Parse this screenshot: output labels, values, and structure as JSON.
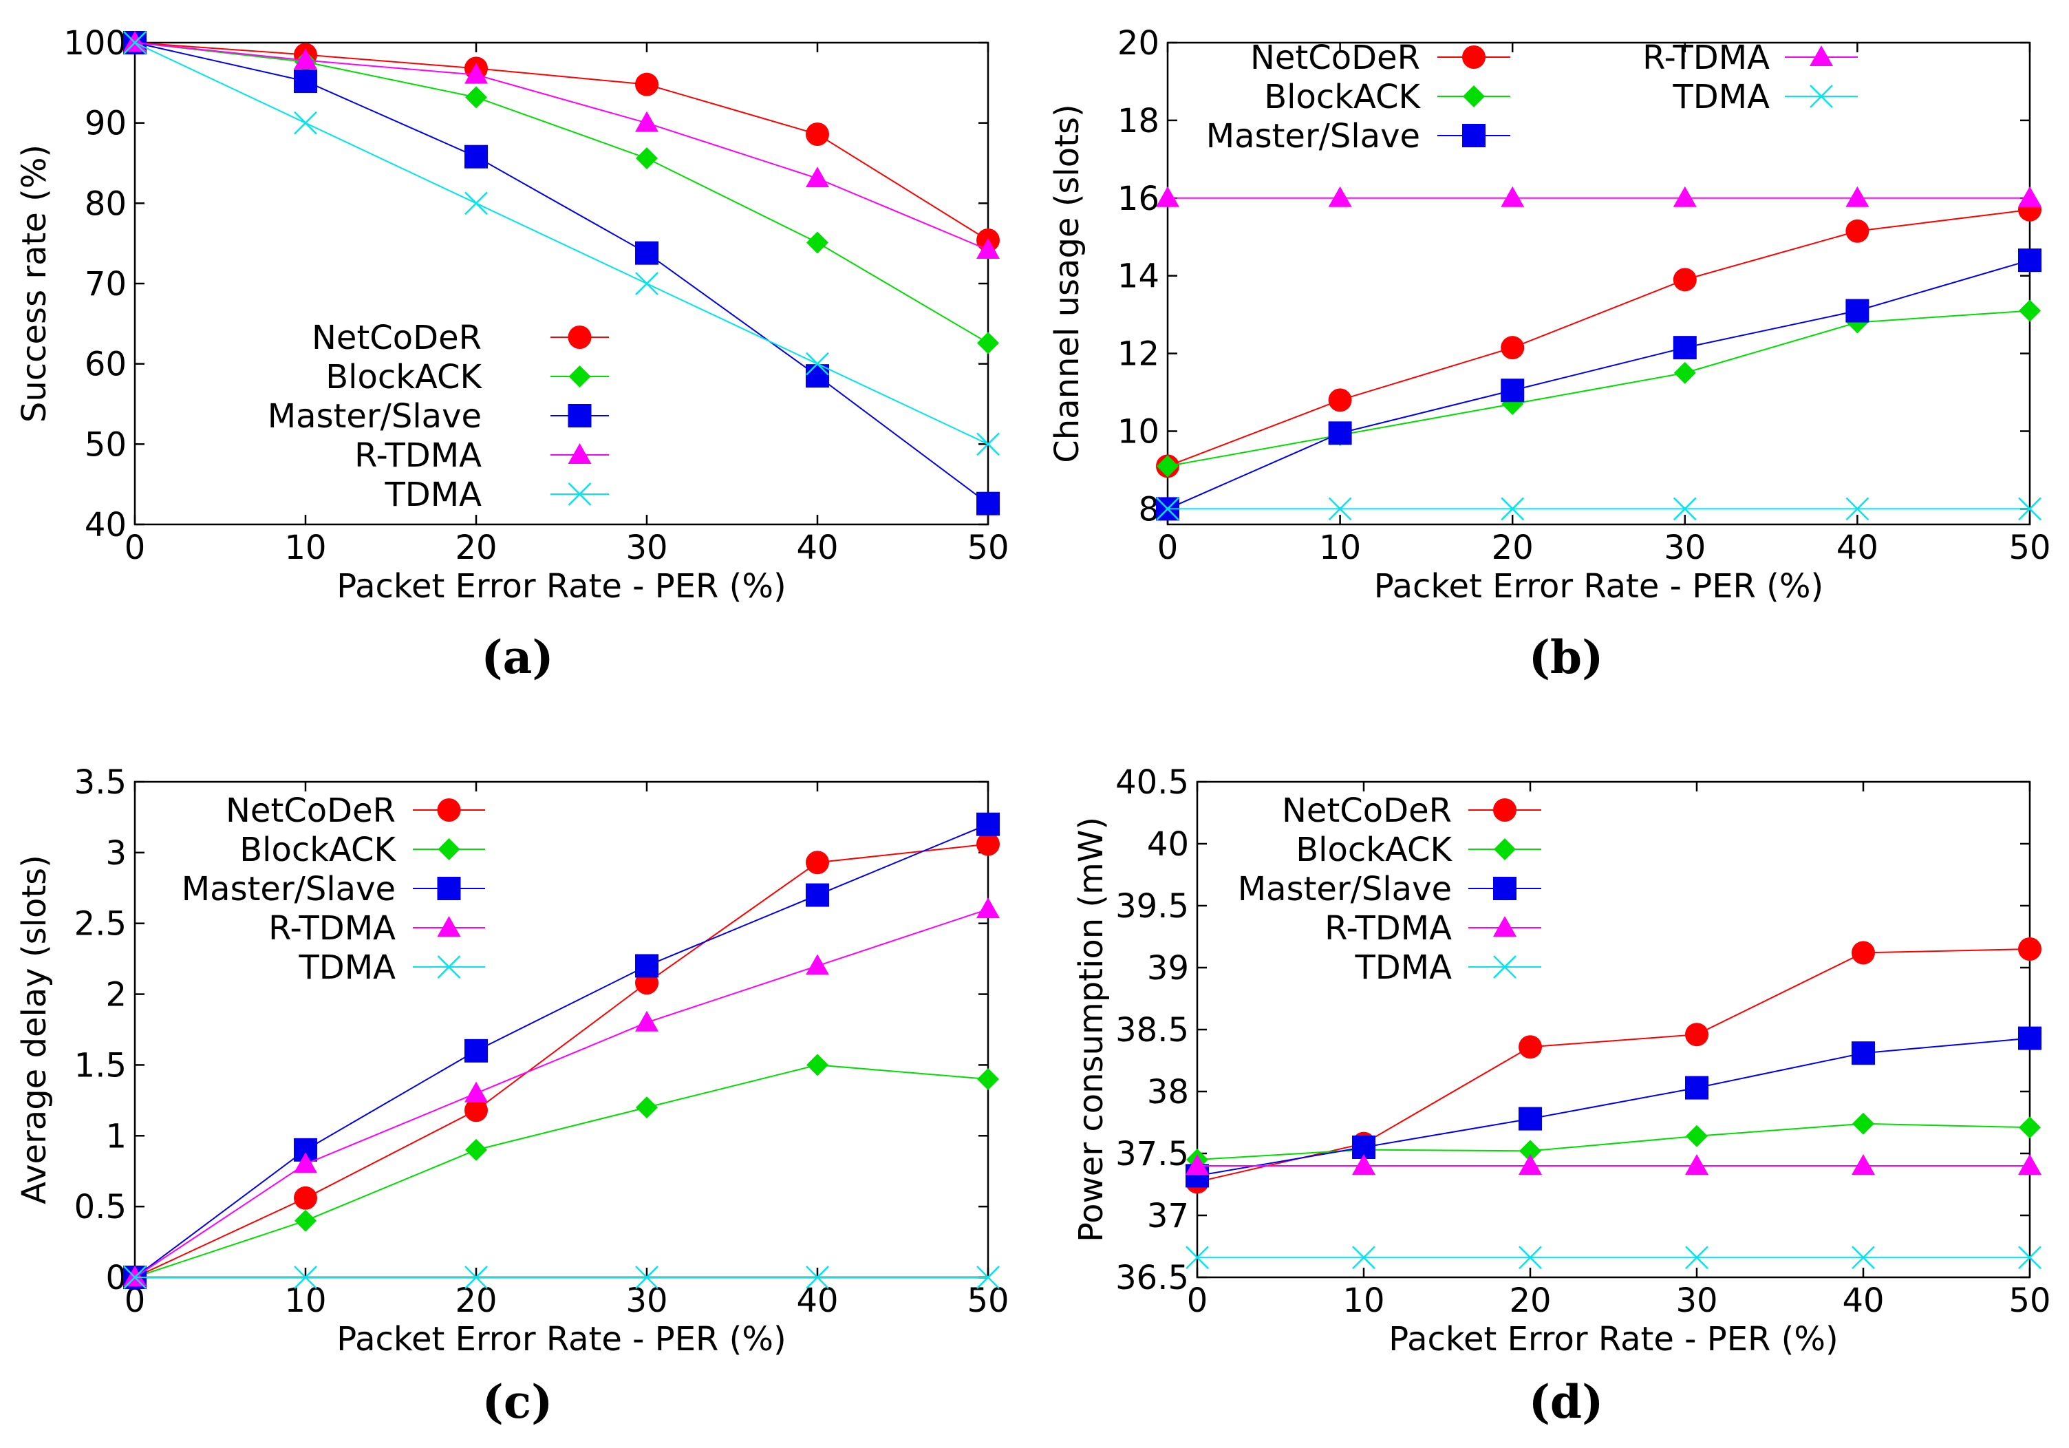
{
  "legend_colors": {
    "NetCoDeR": "#ff0000",
    "BlockACK": "#00dd00",
    "Master/Slave": "#0000ee",
    "R-TDMA": "#ff00ff",
    "TDMA": "#00e5ee"
  },
  "chart_data": [
    {
      "id": "a",
      "type": "line",
      "caption": "(a)",
      "xlabel": "Packet Error Rate - PER (%)",
      "ylabel": "Success rate (%)",
      "xlim": [
        0,
        50
      ],
      "ylim": [
        40,
        100
      ],
      "xticks": [
        0,
        10,
        20,
        30,
        40,
        50
      ],
      "xtick_labels": [
        "0",
        "10",
        "20",
        "30",
        "40",
        "50"
      ],
      "yticks": [
        40,
        50,
        60,
        70,
        80,
        90,
        100
      ],
      "ytick_labels": [
        "40",
        "50",
        "60",
        "70",
        "80",
        "90",
        "100"
      ],
      "legend_placement": "bottom-left",
      "x": [
        0,
        10,
        20,
        30,
        40,
        50
      ],
      "series": [
        {
          "name": "NetCoDeR",
          "marker": "circle",
          "values": [
            100,
            98.5,
            96.8,
            94.8,
            88.6,
            75.4
          ]
        },
        {
          "name": "BlockACK",
          "marker": "diamond",
          "values": [
            100,
            97.6,
            93.2,
            85.6,
            75.1,
            62.6
          ]
        },
        {
          "name": "Master/Slave",
          "marker": "square",
          "values": [
            100,
            95.2,
            85.8,
            73.8,
            58.5,
            42.6
          ]
        },
        {
          "name": "R-TDMA",
          "marker": "triangle",
          "values": [
            100,
            97.8,
            96.0,
            90.0,
            83.1,
            74.2
          ]
        },
        {
          "name": "TDMA",
          "marker": "cross",
          "values": [
            100,
            90.0,
            80.0,
            70.0,
            60.0,
            50.0
          ]
        }
      ]
    },
    {
      "id": "b",
      "type": "line",
      "caption": "(b)",
      "xlabel": "Packet Error Rate - PER (%)",
      "ylabel": "Channel usage (slots)",
      "xlim": [
        0,
        50
      ],
      "ylim": [
        7.6,
        20
      ],
      "xticks": [
        0,
        10,
        20,
        30,
        40,
        50
      ],
      "xtick_labels": [
        "0",
        "10",
        "20",
        "30",
        "40",
        "50"
      ],
      "yticks": [
        8,
        10,
        12,
        14,
        16,
        18,
        20
      ],
      "ytick_labels": [
        "8",
        "10",
        "12",
        "14",
        "16",
        "18",
        "20"
      ],
      "legend_placement": "top (two columns)",
      "x": [
        0,
        10,
        20,
        30,
        40,
        50
      ],
      "series": [
        {
          "name": "NetCoDeR",
          "marker": "circle",
          "values": [
            9.1,
            10.8,
            12.15,
            13.9,
            15.15,
            15.7
          ]
        },
        {
          "name": "BlockACK",
          "marker": "diamond",
          "values": [
            9.1,
            9.9,
            10.7,
            11.5,
            12.8,
            13.1
          ]
        },
        {
          "name": "Master/Slave",
          "marker": "square",
          "values": [
            8.0,
            9.95,
            11.05,
            12.15,
            13.1,
            14.4
          ]
        },
        {
          "name": "R-TDMA",
          "marker": "triangle",
          "values": [
            16,
            16,
            16,
            16,
            16,
            16
          ]
        },
        {
          "name": "TDMA",
          "marker": "cross",
          "values": [
            8,
            8,
            8,
            8,
            8,
            8
          ]
        }
      ]
    },
    {
      "id": "c",
      "type": "line",
      "caption": "(c)",
      "xlabel": "Packet Error Rate - PER (%)",
      "ylabel": "Average delay (slots)",
      "xlim": [
        0,
        50
      ],
      "ylim": [
        0,
        3.5
      ],
      "xticks": [
        0,
        10,
        20,
        30,
        40,
        50
      ],
      "xtick_labels": [
        "0",
        "10",
        "20",
        "30",
        "40",
        "50"
      ],
      "yticks": [
        0,
        0.5,
        1,
        1.5,
        2,
        2.5,
        3,
        3.5
      ],
      "ytick_labels": [
        "0",
        "0.5",
        "1",
        "1.5",
        "2",
        "2.5",
        "3",
        "3.5"
      ],
      "legend_placement": "top-left",
      "x": [
        0,
        10,
        20,
        30,
        40,
        50
      ],
      "series": [
        {
          "name": "NetCoDeR",
          "marker": "circle",
          "values": [
            0,
            0.56,
            1.18,
            2.08,
            2.93,
            3.06
          ]
        },
        {
          "name": "BlockACK",
          "marker": "diamond",
          "values": [
            0,
            0.4,
            0.9,
            1.2,
            1.5,
            1.4
          ]
        },
        {
          "name": "Master/Slave",
          "marker": "square",
          "values": [
            0,
            0.9,
            1.6,
            2.2,
            2.7,
            3.2
          ]
        },
        {
          "name": "R-TDMA",
          "marker": "triangle",
          "values": [
            0,
            0.8,
            1.3,
            1.8,
            2.2,
            2.6
          ]
        },
        {
          "name": "TDMA",
          "marker": "cross",
          "values": [
            0,
            0,
            0,
            0,
            0,
            0
          ]
        }
      ]
    },
    {
      "id": "d",
      "type": "line",
      "caption": "(d)",
      "xlabel": "Packet Error Rate - PER (%)",
      "ylabel": "Power consumption (mW)",
      "xlim": [
        0,
        50
      ],
      "ylim": [
        36.5,
        40.5
      ],
      "xticks": [
        0,
        10,
        20,
        30,
        40,
        50
      ],
      "xtick_labels": [
        "0",
        "10",
        "20",
        "30",
        "40",
        "50"
      ],
      "yticks": [
        36.5,
        37,
        37.5,
        38,
        38.5,
        39,
        39.5,
        40,
        40.5
      ],
      "ytick_labels": [
        "36.5",
        "37",
        "37.5",
        "38",
        "38.5",
        "39",
        "39.5",
        "40",
        "40.5"
      ],
      "legend_placement": "top-left",
      "x": [
        0,
        10,
        20,
        30,
        40,
        50
      ],
      "series": [
        {
          "name": "NetCoDeR",
          "marker": "circle",
          "values": [
            37.27,
            37.58,
            38.36,
            38.46,
            39.12,
            39.15
          ]
        },
        {
          "name": "BlockACK",
          "marker": "diamond",
          "values": [
            37.45,
            37.53,
            37.52,
            37.64,
            37.74,
            37.71
          ]
        },
        {
          "name": "Master/Slave",
          "marker": "square",
          "values": [
            37.32,
            37.55,
            37.78,
            38.03,
            38.31,
            38.43
          ]
        },
        {
          "name": "R-TDMA",
          "marker": "triangle",
          "values": [
            37.4,
            37.4,
            37.4,
            37.4,
            37.4,
            37.4
          ]
        },
        {
          "name": "TDMA",
          "marker": "cross",
          "values": [
            36.66,
            36.66,
            36.66,
            36.66,
            36.66,
            36.66
          ]
        }
      ]
    }
  ]
}
